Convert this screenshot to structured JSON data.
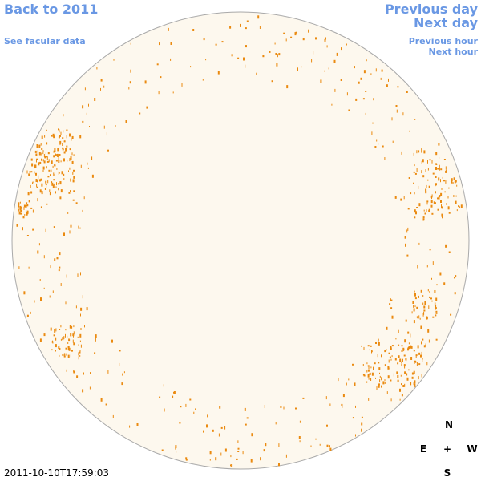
{
  "nav": {
    "back": "Back to 2011",
    "data_link": "See facular data",
    "previous_day": "Previous day",
    "next_day": "Next day",
    "previous_hour": "Previous hour",
    "next_hour": "Next hour"
  },
  "compass": {
    "north": "N",
    "east": "E",
    "center": "+",
    "west": "W",
    "south": "S"
  },
  "timestamp": "2011-10-10T17:59:03"
}
